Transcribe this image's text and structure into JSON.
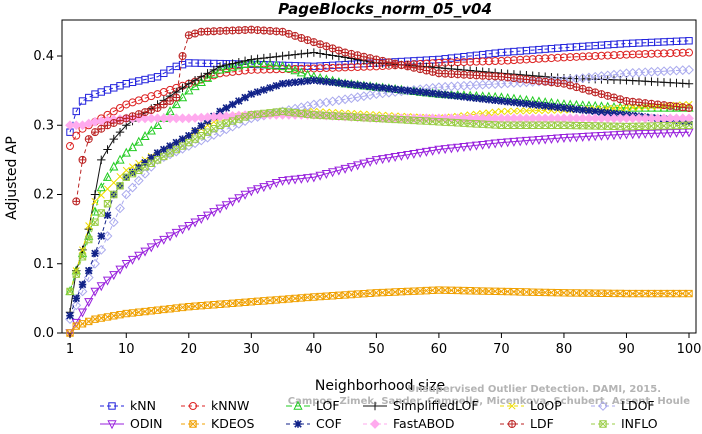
{
  "chart_data": {
    "type": "line",
    "title": "PageBlocks_norm_05_v04",
    "xlabel": "Neighborhood size",
    "ylabel": "Adjusted AP",
    "xlim": [
      0,
      100
    ],
    "ylim": [
      0,
      0.44
    ],
    "xticks": [
      1,
      10,
      20,
      30,
      40,
      50,
      60,
      70,
      80,
      90,
      100
    ],
    "xtick_labels": [
      "1",
      "10",
      "20",
      "30",
      "40",
      "50",
      "60",
      "70",
      "80",
      "90",
      "100"
    ],
    "yticks": [
      0.0,
      0.1,
      0.2,
      0.3,
      0.4
    ],
    "ytick_labels": [
      "0.0",
      "0.1",
      "0.2",
      "0.3",
      "0.4"
    ],
    "grid": false,
    "legend_position": "bottom",
    "watermark": "Campos, Zimek, Sander, Campello, Micenkova, Schubert, Assent, Houle",
    "watermark_line1": "Unsupervised Outlier Detection. DAMI, 2015.",
    "series": [
      {
        "name": "kNN",
        "color": "#2222dd",
        "marker": "square",
        "dash": "4,3",
        "points": [
          [
            1,
            0.29
          ],
          [
            2,
            0.32
          ],
          [
            3,
            0.335
          ],
          [
            5,
            0.345
          ],
          [
            10,
            0.36
          ],
          [
            15,
            0.37
          ],
          [
            18,
            0.385
          ],
          [
            20,
            0.39
          ],
          [
            30,
            0.388
          ],
          [
            40,
            0.385
          ],
          [
            50,
            0.39
          ],
          [
            60,
            0.395
          ],
          [
            70,
            0.405
          ],
          [
            80,
            0.412
          ],
          [
            90,
            0.418
          ],
          [
            100,
            0.422
          ]
        ]
      },
      {
        "name": "kNNW",
        "color": "#dd2222",
        "marker": "circle",
        "dash": "4,3",
        "points": [
          [
            1,
            0.27
          ],
          [
            2,
            0.285
          ],
          [
            3,
            0.295
          ],
          [
            5,
            0.305
          ],
          [
            10,
            0.33
          ],
          [
            15,
            0.345
          ],
          [
            20,
            0.36
          ],
          [
            25,
            0.375
          ],
          [
            30,
            0.38
          ],
          [
            40,
            0.382
          ],
          [
            50,
            0.385
          ],
          [
            60,
            0.39
          ],
          [
            70,
            0.393
          ],
          [
            80,
            0.398
          ],
          [
            90,
            0.402
          ],
          [
            100,
            0.405
          ]
        ]
      },
      {
        "name": "LOF",
        "color": "#22cc22",
        "marker": "triangle-up",
        "dash": "6,3",
        "points": [
          [
            1,
            0.06
          ],
          [
            2,
            0.09
          ],
          [
            4,
            0.14
          ],
          [
            6,
            0.21
          ],
          [
            8,
            0.24
          ],
          [
            10,
            0.26
          ],
          [
            15,
            0.3
          ],
          [
            20,
            0.35
          ],
          [
            25,
            0.38
          ],
          [
            30,
            0.39
          ],
          [
            35,
            0.385
          ],
          [
            40,
            0.37
          ],
          [
            45,
            0.36
          ],
          [
            50,
            0.355
          ],
          [
            60,
            0.345
          ],
          [
            70,
            0.34
          ],
          [
            80,
            0.33
          ],
          [
            90,
            0.325
          ],
          [
            100,
            0.325
          ]
        ]
      },
      {
        "name": "SimplifiedLOF",
        "color": "#111111",
        "marker": "plus",
        "dash": "",
        "points": [
          [
            1,
            0.03
          ],
          [
            2,
            0.09
          ],
          [
            4,
            0.15
          ],
          [
            6,
            0.25
          ],
          [
            8,
            0.28
          ],
          [
            10,
            0.3
          ],
          [
            15,
            0.33
          ],
          [
            20,
            0.36
          ],
          [
            25,
            0.385
          ],
          [
            30,
            0.395
          ],
          [
            35,
            0.4
          ],
          [
            40,
            0.405
          ],
          [
            45,
            0.398
          ],
          [
            50,
            0.39
          ],
          [
            60,
            0.383
          ],
          [
            70,
            0.375
          ],
          [
            80,
            0.368
          ],
          [
            90,
            0.365
          ],
          [
            100,
            0.36
          ]
        ]
      },
      {
        "name": "LoOP",
        "color": "#eedd00",
        "marker": "cross",
        "dash": "4,3",
        "points": [
          [
            1,
            0.06
          ],
          [
            3,
            0.12
          ],
          [
            5,
            0.19
          ],
          [
            10,
            0.235
          ],
          [
            15,
            0.26
          ],
          [
            20,
            0.285
          ],
          [
            25,
            0.31
          ],
          [
            30,
            0.315
          ],
          [
            40,
            0.32
          ],
          [
            50,
            0.315
          ],
          [
            60,
            0.31
          ],
          [
            70,
            0.32
          ],
          [
            80,
            0.322
          ],
          [
            90,
            0.325
          ],
          [
            100,
            0.33
          ]
        ]
      },
      {
        "name": "LDOF",
        "color": "#aaaaee",
        "marker": "diamond",
        "dash": "4,3",
        "points": [
          [
            1,
            0.02
          ],
          [
            3,
            0.06
          ],
          [
            5,
            0.1
          ],
          [
            8,
            0.16
          ],
          [
            10,
            0.2
          ],
          [
            15,
            0.25
          ],
          [
            20,
            0.27
          ],
          [
            25,
            0.29
          ],
          [
            30,
            0.31
          ],
          [
            40,
            0.33
          ],
          [
            50,
            0.345
          ],
          [
            60,
            0.355
          ],
          [
            70,
            0.36
          ],
          [
            80,
            0.365
          ],
          [
            90,
            0.375
          ],
          [
            100,
            0.38
          ]
        ]
      },
      {
        "name": "ODIN",
        "color": "#9922dd",
        "marker": "triangle-down",
        "dash": "",
        "points": [
          [
            1,
            0.0
          ],
          [
            3,
            0.03
          ],
          [
            5,
            0.06
          ],
          [
            10,
            0.1
          ],
          [
            15,
            0.13
          ],
          [
            20,
            0.155
          ],
          [
            25,
            0.18
          ],
          [
            30,
            0.205
          ],
          [
            35,
            0.22
          ],
          [
            40,
            0.225
          ],
          [
            50,
            0.25
          ],
          [
            60,
            0.265
          ],
          [
            70,
            0.275
          ],
          [
            80,
            0.282
          ],
          [
            90,
            0.287
          ],
          [
            100,
            0.29
          ]
        ]
      },
      {
        "name": "KDEOS",
        "color": "#f0a000",
        "marker": "square-x",
        "dash": "4,3",
        "points": [
          [
            1,
            0.0
          ],
          [
            2,
            0.01
          ],
          [
            5,
            0.02
          ],
          [
            10,
            0.028
          ],
          [
            15,
            0.033
          ],
          [
            20,
            0.038
          ],
          [
            30,
            0.045
          ],
          [
            40,
            0.052
          ],
          [
            50,
            0.058
          ],
          [
            60,
            0.062
          ],
          [
            70,
            0.06
          ],
          [
            80,
            0.058
          ],
          [
            90,
            0.057
          ],
          [
            100,
            0.057
          ]
        ]
      },
      {
        "name": "COF",
        "color": "#112288",
        "marker": "asterisk",
        "dash": "4,3",
        "points": [
          [
            1,
            0.025
          ],
          [
            2,
            0.05
          ],
          [
            4,
            0.09
          ],
          [
            6,
            0.14
          ],
          [
            8,
            0.2
          ],
          [
            10,
            0.225
          ],
          [
            15,
            0.26
          ],
          [
            20,
            0.285
          ],
          [
            25,
            0.32
          ],
          [
            30,
            0.345
          ],
          [
            35,
            0.36
          ],
          [
            40,
            0.365
          ],
          [
            50,
            0.355
          ],
          [
            60,
            0.345
          ],
          [
            70,
            0.335
          ],
          [
            80,
            0.325
          ],
          [
            90,
            0.315
          ],
          [
            100,
            0.305
          ]
        ]
      },
      {
        "name": "FastABOD",
        "color": "#ffaaee",
        "marker": "diamond-filled",
        "dash": "4,3",
        "points": [
          [
            1,
            0.3
          ],
          [
            3,
            0.3
          ],
          [
            5,
            0.305
          ],
          [
            10,
            0.31
          ],
          [
            20,
            0.31
          ],
          [
            30,
            0.315
          ],
          [
            40,
            0.315
          ],
          [
            50,
            0.31
          ],
          [
            60,
            0.31
          ],
          [
            70,
            0.31
          ],
          [
            80,
            0.31
          ],
          [
            90,
            0.31
          ],
          [
            100,
            0.31
          ]
        ]
      },
      {
        "name": "LDF",
        "color": "#bb2222",
        "marker": "circle-plus",
        "dash": "4,3",
        "points": [
          [
            2,
            0.19
          ],
          [
            3,
            0.25
          ],
          [
            4,
            0.28
          ],
          [
            5,
            0.29
          ],
          [
            7,
            0.3
          ],
          [
            10,
            0.31
          ],
          [
            15,
            0.325
          ],
          [
            18,
            0.34
          ],
          [
            19,
            0.4
          ],
          [
            20,
            0.43
          ],
          [
            22,
            0.435
          ],
          [
            30,
            0.438
          ],
          [
            35,
            0.435
          ],
          [
            40,
            0.42
          ],
          [
            45,
            0.405
          ],
          [
            50,
            0.395
          ],
          [
            55,
            0.385
          ],
          [
            60,
            0.375
          ],
          [
            70,
            0.37
          ],
          [
            80,
            0.36
          ],
          [
            90,
            0.335
          ],
          [
            100,
            0.325
          ]
        ]
      },
      {
        "name": "INFLO",
        "color": "#99cc44",
        "marker": "square-x",
        "dash": "4,3",
        "points": [
          [
            1,
            0.06
          ],
          [
            3,
            0.11
          ],
          [
            5,
            0.16
          ],
          [
            8,
            0.2
          ],
          [
            10,
            0.225
          ],
          [
            15,
            0.25
          ],
          [
            20,
            0.275
          ],
          [
            25,
            0.3
          ],
          [
            30,
            0.315
          ],
          [
            35,
            0.32
          ],
          [
            40,
            0.315
          ],
          [
            50,
            0.31
          ],
          [
            60,
            0.305
          ],
          [
            70,
            0.3
          ],
          [
            80,
            0.3
          ],
          [
            90,
            0.298
          ],
          [
            100,
            0.3
          ]
        ]
      }
    ]
  }
}
